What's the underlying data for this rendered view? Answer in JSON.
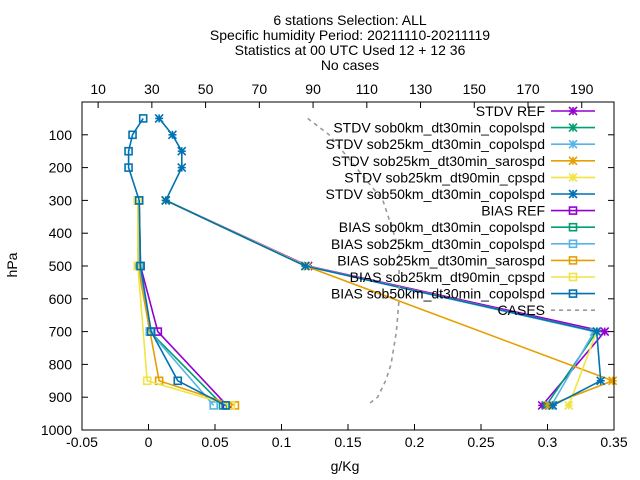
{
  "header": {
    "title_lines": [
      "6 stations Selection: ALL",
      "Specific humidity  Period: 20211110-20211119",
      "Statistics at 00 UTC  Used 12 + 12 36",
      "No cases"
    ]
  },
  "chart_data": {
    "type": "line",
    "xlabel": "g/Kg",
    "ylabel": "hPa",
    "x2label": "",
    "xlim": [
      -0.05,
      0.35
    ],
    "ylim": [
      1000,
      0
    ],
    "x2lim": [
      10,
      200
    ],
    "x_ticks": [
      -0.05,
      0,
      0.05,
      0.1,
      0.15,
      0.2,
      0.25,
      0.3,
      0.35
    ],
    "x_tick_labels": [
      "-0.05",
      "0",
      "0.05",
      "0.1",
      "0.15",
      "0.2",
      "0.25",
      "0.3",
      "0.35"
    ],
    "x2_ticks": [
      10,
      30,
      50,
      70,
      90,
      110,
      130,
      150,
      170,
      190
    ],
    "x2_tick_labels": [
      "10",
      "30",
      "50",
      "70",
      "90",
      "110",
      "130",
      "150",
      "170",
      "190"
    ],
    "y_ticks": [
      100,
      200,
      300,
      400,
      500,
      600,
      700,
      800,
      900,
      1000
    ],
    "y_tick_labels": [
      "100",
      "200",
      "300",
      "400",
      "500",
      "600",
      "700",
      "800",
      "900",
      "1000"
    ],
    "grid": false,
    "legend_position": "top-right",
    "series": [
      {
        "name": "STDV REF",
        "color": "#9400d3",
        "marker": "star",
        "dash": false,
        "x": [
          0.296,
          0.343,
          0.12,
          0.013
        ],
        "y": [
          925,
          700,
          500,
          300
        ]
      },
      {
        "name": "STDV sob0km_dt30min_copolspd",
        "color": "#009e73",
        "marker": "star",
        "dash": false,
        "x": [
          0.299,
          0.337,
          0.118,
          0.013
        ],
        "y": [
          925,
          700,
          500,
          300
        ]
      },
      {
        "name": "STDV sob25km_dt30min_copolspd",
        "color": "#56b4e9",
        "marker": "star",
        "dash": false,
        "x": [
          0.303,
          0.335,
          0.118,
          0.013
        ],
        "y": [
          925,
          700,
          500,
          300
        ]
      },
      {
        "name": "STDV sob25km_dt30min_sarospd",
        "color": "#e69f00",
        "marker": "star",
        "dash": false,
        "x": [
          0.301,
          0.349,
          0.118,
          0.013
        ],
        "y": [
          925,
          850,
          500,
          300
        ]
      },
      {
        "name": "STDV sob25km_dt90min_cpspd",
        "color": "#f0e442",
        "marker": "star",
        "dash": false,
        "x": [
          0.316,
          0.337,
          0.119,
          0.013
        ],
        "y": [
          925,
          700,
          500,
          300
        ]
      },
      {
        "name": "STDV sob50km_dt30min_copolspd",
        "color": "#0072b2",
        "marker": "star",
        "dash": false,
        "x": [
          0.304,
          0.34,
          0.337,
          0.118,
          0.013,
          0.025,
          0.025,
          0.018,
          0.008
        ],
        "y": [
          925,
          850,
          700,
          500,
          300,
          200,
          150,
          100,
          50
        ]
      },
      {
        "name": "BIAS REF",
        "color": "#9400d3",
        "marker": "square",
        "dash": false,
        "x": [
          0.059,
          0.007,
          -0.006,
          -0.007
        ],
        "y": [
          925,
          700,
          500,
          300
        ]
      },
      {
        "name": "BIAS sob0km_dt30min_copolspd",
        "color": "#009e73",
        "marker": "square",
        "dash": false,
        "x": [
          0.056,
          0.001,
          -0.007,
          -0.008
        ],
        "y": [
          925,
          700,
          500,
          300
        ]
      },
      {
        "name": "BIAS sob25km_dt30min_copolspd",
        "color": "#56b4e9",
        "marker": "square",
        "dash": false,
        "x": [
          0.049,
          0.001,
          -0.007,
          -0.008
        ],
        "y": [
          925,
          700,
          500,
          300
        ]
      },
      {
        "name": "BIAS sob25km_dt30min_sarospd",
        "color": "#e69f00",
        "marker": "square",
        "dash": false,
        "x": [
          0.065,
          0.008,
          -0.008,
          -0.008
        ],
        "y": [
          925,
          850,
          500,
          300
        ]
      },
      {
        "name": "BIAS sob25km_dt90min_cpspd",
        "color": "#f0e442",
        "marker": "square",
        "dash": false,
        "x": [
          0.062,
          -0.001,
          -0.008,
          -0.008
        ],
        "y": [
          925,
          850,
          500,
          300
        ]
      },
      {
        "name": "BIAS sob50km_dt30min_copolspd",
        "color": "#0072b2",
        "marker": "square",
        "dash": false,
        "x": [
          0.058,
          0.022,
          0.002,
          -0.006,
          -0.007,
          -0.015,
          -0.015,
          -0.012,
          -0.004
        ],
        "y": [
          925,
          850,
          700,
          500,
          300,
          200,
          150,
          100,
          50
        ]
      },
      {
        "name": "CASES",
        "color": "#999999",
        "marker": "none",
        "dash": true,
        "axis": "x2",
        "x2": [
          88,
          96,
          106,
          116,
          122,
          122,
          121,
          119,
          117,
          114,
          110
        ],
        "y": [
          50,
          100,
          200,
          300,
          450,
          600,
          700,
          800,
          850,
          900,
          925
        ]
      }
    ]
  }
}
